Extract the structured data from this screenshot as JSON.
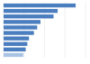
{
  "chart_data": {
    "type": "bar",
    "orientation": "horizontal",
    "categories": [
      null,
      null,
      null,
      null,
      null,
      null,
      null,
      null,
      null,
      null
    ],
    "values": [
      88,
      66,
      61,
      45,
      41,
      37,
      31,
      29,
      27,
      24
    ],
    "colors": [
      "#4a7ebf",
      "#4a7ebf",
      "#4a7ebf",
      "#4a7ebf",
      "#4a7ebf",
      "#4a7ebf",
      "#4a7ebf",
      "#4a7ebf",
      "#4a7ebf",
      "#a9c3e5"
    ],
    "xlim": [
      0,
      100
    ],
    "xticks": [
      0,
      25,
      50,
      75,
      100
    ],
    "grid": true,
    "tick_labels": false
  }
}
